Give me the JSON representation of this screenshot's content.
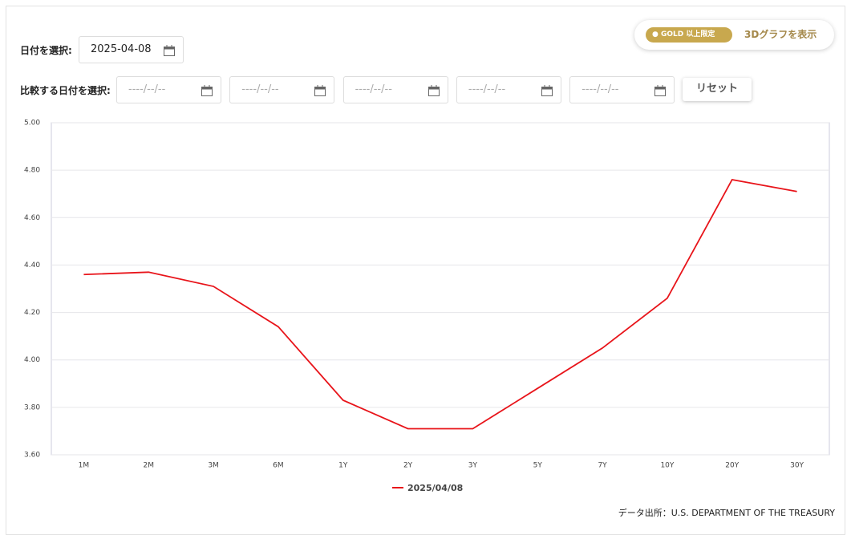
{
  "ui": {
    "date_label": "日付を選択:",
    "date_value": "2025-04-08",
    "compare_label": "比較する日付を選択:",
    "compare_placeholders": [
      "----/--/--",
      "----/--/--",
      "----/--/--",
      "----/--/--",
      "----/--/--"
    ],
    "reset": "リセット",
    "gold_badge": "GOLD",
    "gold_badge_suffix": "以上限定",
    "view_3d": "3Dグラフを表示",
    "source": "データ出所：U.S. DEPARTMENT OF THE TREASURY"
  },
  "chart_data": {
    "type": "line",
    "categories": [
      "1M",
      "2M",
      "3M",
      "6M",
      "1Y",
      "2Y",
      "3Y",
      "5Y",
      "7Y",
      "10Y",
      "20Y",
      "30Y"
    ],
    "series": [
      {
        "name": "2025/04/08",
        "color": "#e8141a",
        "values": [
          4.36,
          4.37,
          4.31,
          4.14,
          3.83,
          3.71,
          3.71,
          3.88,
          4.05,
          4.26,
          4.76,
          4.71
        ]
      }
    ],
    "ylim": [
      3.6,
      5.0
    ],
    "yticks": [
      {
        "value": 3.6,
        "label": "3.60"
      },
      {
        "value": 3.8,
        "label": "3.80"
      },
      {
        "value": 4.0,
        "label": "4.00"
      },
      {
        "value": 4.2,
        "label": "4.20"
      },
      {
        "value": 4.4,
        "label": "4.40"
      },
      {
        "value": 4.6,
        "label": "4.60"
      },
      {
        "value": 4.8,
        "label": "4.80"
      },
      {
        "value": 5.0,
        "label": "5.00"
      }
    ],
    "grid": true,
    "legend": "bottom"
  }
}
